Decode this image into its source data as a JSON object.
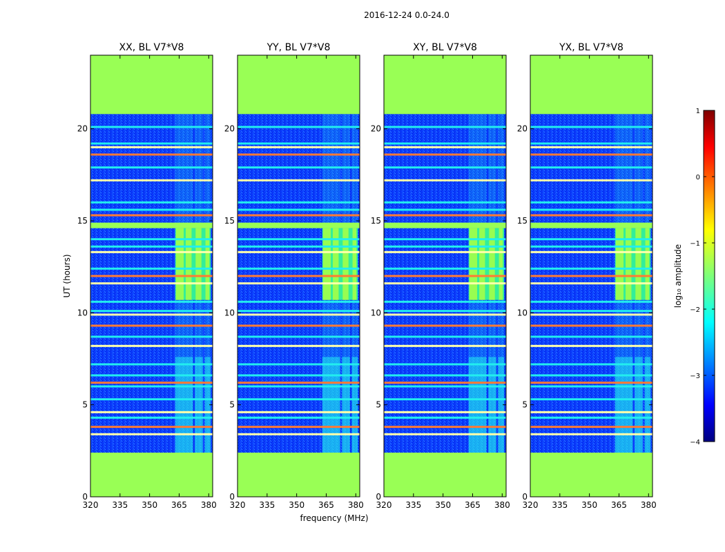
{
  "chart_data": {
    "type": "heatmap",
    "suptitle": "2016-12-24 0.0-24.0",
    "xlabel": "frequency (MHz)",
    "ylabel": "UT (hours)",
    "xlim": [
      320,
      382
    ],
    "ylim": [
      0,
      24
    ],
    "xticks": [
      320,
      335,
      350,
      365,
      380
    ],
    "yticks": [
      0,
      5,
      10,
      15,
      20
    ],
    "panels": [
      {
        "title": "XX, BL V7*V8"
      },
      {
        "title": "YY, BL V7*V8"
      },
      {
        "title": "XY, BL V7*V8"
      },
      {
        "title": "YX, BL V7*V8"
      }
    ],
    "colorbar": {
      "label": "log₁₀ amplitude",
      "range": [
        -4,
        1
      ],
      "ticks": [
        "1",
        "0",
        "−1",
        "−2",
        "−3",
        "−4"
      ],
      "colormap": "jet"
    },
    "flagged_time_ranges_hours": [
      [
        0,
        2.4
      ],
      [
        20.8,
        24
      ],
      [
        14.6,
        14.9
      ]
    ],
    "rfi_band_start_mhz": 363,
    "rfi_bright_channels_mhz": [
      [
        363,
        368
      ],
      [
        368,
        372
      ],
      [
        373,
        377
      ],
      [
        378,
        381
      ]
    ],
    "bright_time_range_hours": [
      10.7,
      14.6
    ],
    "flag_lines_hours": [
      3.4,
      3.8,
      4.3,
      4.6,
      5.3,
      6.0,
      6.2,
      6.6,
      7.2,
      8.2,
      8.7,
      9.3,
      9.9,
      10.1,
      10.6,
      11.6,
      12.0,
      12.4,
      13.3,
      13.6,
      14.0,
      15.3,
      15.6,
      16.0,
      17.2,
      17.9,
      18.6,
      19.0,
      19.2,
      20.1
    ],
    "colors": {
      "flagged": "#99ff55",
      "background_low": "#0033ff",
      "orange_line": "#ff7a33",
      "cyan": "#22eeee"
    }
  }
}
